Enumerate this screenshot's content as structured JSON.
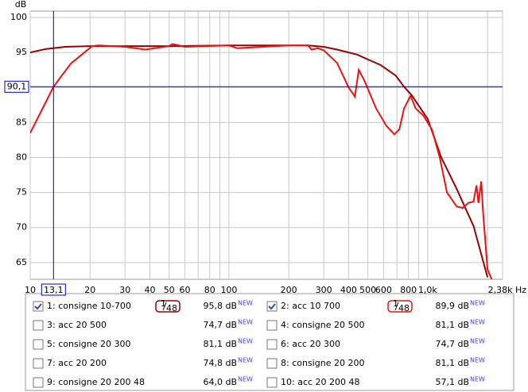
{
  "chart_data": {
    "type": "line",
    "y_axis_label": "dB",
    "xscale": "log",
    "grid": true,
    "xlim": [
      10,
      2380
    ],
    "ylim": [
      62.6,
      100.9
    ],
    "xticks": [
      10,
      20,
      30,
      40,
      50,
      60,
      80,
      100,
      200,
      300,
      400,
      500,
      600,
      800,
      {
        "value": 1000,
        "label": "1,0k"
      },
      {
        "value": 2380,
        "label": "2,38k Hz"
      }
    ],
    "x_minor_ticks": [
      70,
      90,
      700,
      900,
      2000
    ],
    "yticks": [
      65,
      70,
      75,
      80,
      85,
      90,
      95,
      100
    ],
    "cursor": {
      "x": {
        "value": 13.1,
        "label": "13,1"
      },
      "y": {
        "value": 90.1,
        "label": "90,1"
      },
      "color": "#0000c0"
    },
    "new_badge": "NEW",
    "series": [
      {
        "name": "1: consigne 10-700",
        "color": "#990000",
        "checked": true,
        "level": "95,8 dB",
        "smoothing": {
          "num": "1",
          "den": "48"
        },
        "x": [
          10,
          12,
          15,
          20,
          50,
          100,
          250,
          300,
          350,
          400,
          440,
          500,
          580,
          690,
          760,
          830,
          1000,
          1170,
          1400,
          1700,
          2000
        ],
        "values": [
          95.0,
          95.5,
          95.8,
          95.9,
          95.9,
          96.0,
          96.0,
          95.8,
          95.4,
          95.0,
          94.7,
          94.0,
          93.2,
          91.7,
          90.1,
          88.9,
          85.5,
          80.0,
          75.5,
          70.2,
          62.9
        ]
      },
      {
        "name": "2: acc 10 700",
        "color": "#ee1111",
        "checked": true,
        "level": "89,9 dB",
        "smoothing": {
          "num": "1",
          "den": "48"
        },
        "x": [
          10,
          13.1,
          16,
          20.5,
          22,
          30,
          38,
          50,
          52,
          60,
          100,
          110,
          200,
          250,
          260,
          280,
          300,
          350,
          400,
          430,
          450,
          480,
          550,
          620,
          680,
          720,
          760,
          820,
          870,
          950,
          1050,
          1150,
          1250,
          1400,
          1500,
          1600,
          1700,
          1760,
          1800,
          1860,
          1900,
          2000,
          2100
        ],
        "values": [
          83.5,
          90.1,
          93.4,
          95.9,
          96.0,
          95.8,
          95.4,
          95.9,
          96.2,
          95.8,
          96.0,
          95.6,
          96.0,
          96.0,
          95.4,
          95.6,
          95.3,
          93.5,
          90.0,
          88.7,
          92.5,
          91.0,
          87.0,
          84.5,
          83.3,
          84.0,
          87.0,
          88.8,
          87.0,
          86.0,
          84.0,
          80.0,
          75.0,
          73.0,
          72.8,
          73.5,
          73.7,
          76.0,
          73.5,
          76.6,
          72.0,
          64.0,
          62.6
        ]
      },
      {
        "name": "3: acc 20 500",
        "color": "#808080",
        "checked": false,
        "level": "74,7 dB"
      },
      {
        "name": "4: consigne 20 500",
        "color": "#000000",
        "checked": false,
        "level": "81,1 dB"
      },
      {
        "name": "5: consigne 20 300",
        "color": "#00a000",
        "checked": false,
        "level": "81,1 dB"
      },
      {
        "name": "6: acc 20 300",
        "color": "#40c000",
        "checked": false,
        "level": "74,7 dB"
      },
      {
        "name": "7: acc 20 200",
        "color": "#ff40ff",
        "checked": false,
        "level": "74,8 dB"
      },
      {
        "name": "8: consigne 20 200",
        "color": "#a000a0",
        "checked": false,
        "level": "81,1 dB"
      },
      {
        "name": "9: consigne 20 200 48",
        "color": "#008080",
        "checked": false,
        "level": "64,0 dB"
      },
      {
        "name": "10: acc 20 200 48",
        "color": "#20a0a0",
        "checked": false,
        "level": "57,1 dB"
      }
    ]
  }
}
